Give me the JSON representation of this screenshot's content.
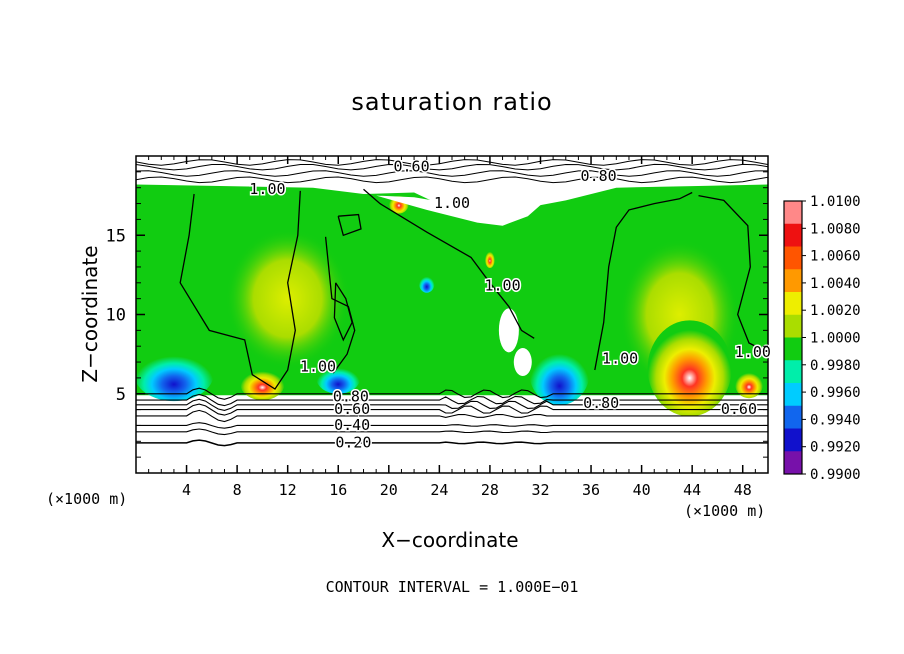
{
  "chart_data": {
    "type": "heatmap",
    "title": "saturation ratio",
    "xlabel": "X−coordinate",
    "ylabel": "Z−coordinate",
    "x_units": "(×1000 m)",
    "y_units": "(×1000 m)",
    "xlim": [
      0,
      50
    ],
    "ylim": [
      0,
      20
    ],
    "x_ticks": [
      4,
      8,
      12,
      16,
      20,
      24,
      28,
      32,
      36,
      40,
      44,
      48
    ],
    "y_ticks": [
      5,
      10,
      15
    ],
    "colorbar": {
      "min": 0.99,
      "max": 1.01,
      "levels": [
        "1.0100",
        "1.0080",
        "1.0060",
        "1.0040",
        "1.0020",
        "1.0000",
        "0.9980",
        "0.9960",
        "0.9940",
        "0.9920",
        "0.9900"
      ],
      "colors": [
        "#ff8888",
        "#ee1111",
        "#ff5500",
        "#ff9900",
        "#eeee00",
        "#aadd00",
        "#11cc11",
        "#00eeaa",
        "#00ccff",
        "#1166ee",
        "#1111cc",
        "#7711aa"
      ]
    },
    "contour_labels": [
      {
        "text": "0.60",
        "x": 21.8,
        "y": 19.3
      },
      {
        "text": "0.80",
        "x": 36.6,
        "y": 18.7
      },
      {
        "text": "1.00",
        "x": 10.4,
        "y": 17.9
      },
      {
        "text": "1.00",
        "x": 25.0,
        "y": 17.0
      },
      {
        "text": "1.00",
        "x": 29.0,
        "y": 11.8
      },
      {
        "text": "1.00",
        "x": 14.4,
        "y": 6.7
      },
      {
        "text": "1.00",
        "x": 38.3,
        "y": 7.2
      },
      {
        "text": "1.00",
        "x": 48.8,
        "y": 7.6
      },
      {
        "text": "0.80",
        "x": 17.0,
        "y": 4.8
      },
      {
        "text": "0.80",
        "x": 36.8,
        "y": 4.4
      },
      {
        "text": "0.60",
        "x": 17.1,
        "y": 4.0
      },
      {
        "text": "0.60",
        "x": 47.7,
        "y": 4.0
      },
      {
        "text": "0.40",
        "x": 17.1,
        "y": 3.0
      },
      {
        "text": "0.20",
        "x": 17.2,
        "y": 1.9
      }
    ],
    "contour_interval_text": "CONTOUR INTERVAL = 1.000E−01"
  }
}
